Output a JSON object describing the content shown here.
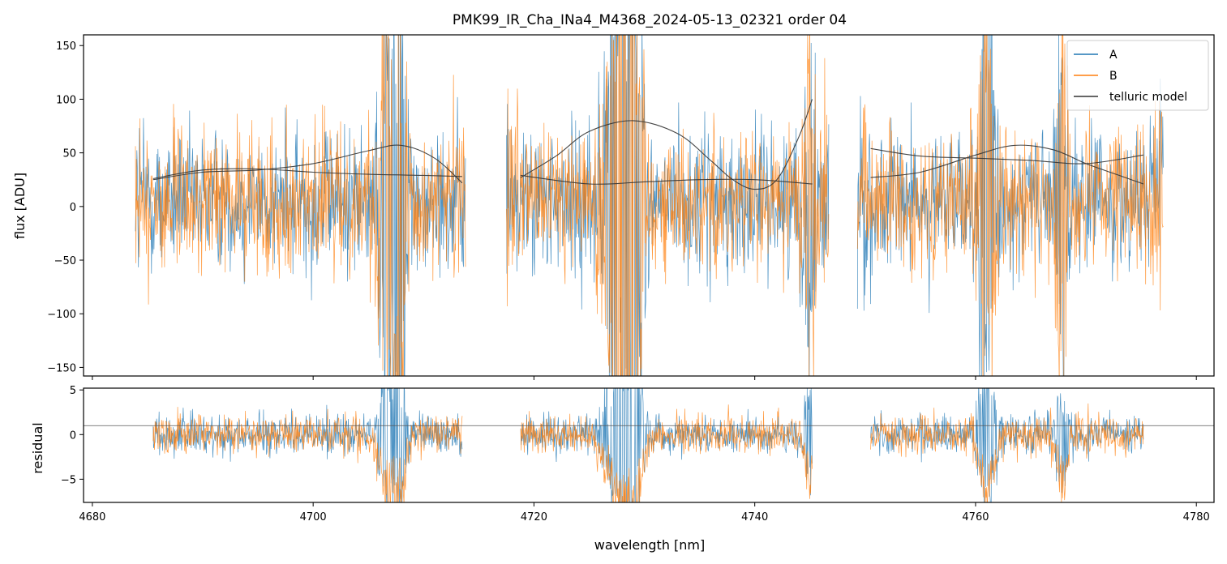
{
  "chart_data": {
    "type": "line",
    "title": "PMK99_IR_Cha_INa4_M4368_2024-05-13_02321  order 04",
    "xlabel": "wavelength [nm]",
    "xlim": [
      4679.2,
      4781.6
    ],
    "x_ticks": [
      4680,
      4700,
      4720,
      4740,
      4760,
      4780
    ],
    "x_tick_labels": [
      "4680",
      "4700",
      "4720",
      "4740",
      "4760",
      "4780"
    ],
    "segments": [
      {
        "start": 4683.9,
        "end": 4713.8
      },
      {
        "start": 4717.5,
        "end": 4746.7
      },
      {
        "start": 4749.3,
        "end": 4777.0
      }
    ],
    "panels": [
      {
        "name": "flux",
        "ylabel": "flux [ADU]",
        "ylim": [
          -158,
          160
        ],
        "y_ticks": [
          -150,
          -100,
          -50,
          0,
          50,
          100,
          150
        ],
        "y_tick_labels": [
          "−150",
          "−100",
          "−50",
          "0",
          "50",
          "100",
          "150"
        ],
        "series": [
          {
            "name": "A",
            "color": "#1f77b4",
            "noise_amplitude": 55,
            "offset": 5
          },
          {
            "name": "B",
            "color": "#ff7f0e",
            "noise_amplitude": 55,
            "offset": 5
          }
        ],
        "telluric_model": {
          "name": "telluric model",
          "color": "#333333",
          "curves": [
            {
              "x": [
                4685.5,
                4690,
                4695,
                4700,
                4705,
                4708,
                4711,
                4713.5
              ],
              "y": [
                25,
                32,
                34,
                40,
                52,
                57,
                45,
                22
              ]
            },
            {
              "x": [
                4685.5,
                4690,
                4695,
                4700,
                4705,
                4710,
                4713.5
              ],
              "y": [
                26,
                34,
                35,
                32,
                30,
                29,
                28
              ]
            },
            {
              "x": [
                4718.8,
                4722,
                4725,
                4729,
                4733,
                4736,
                4738,
                4740,
                4742,
                4744,
                4745.2
              ],
              "y": [
                27,
                47,
                70,
                80,
                68,
                43,
                25,
                16,
                25,
                65,
                100
              ]
            },
            {
              "x": [
                4718.8,
                4725,
                4730,
                4735,
                4740,
                4745.2
              ],
              "y": [
                29,
                21,
                23,
                25,
                25,
                21
              ]
            },
            {
              "x": [
                4750.5,
                4755,
                4760,
                4763.5,
                4767,
                4770,
                4773,
                4775.2
              ],
              "y": [
                27,
                32,
                48,
                57,
                53,
                40,
                29,
                21
              ]
            },
            {
              "x": [
                4750.5,
                4755,
                4760,
                4765,
                4770,
                4775.2
              ],
              "y": [
                54,
                47,
                45,
                43,
                40,
                48
              ]
            }
          ]
        },
        "features": [
          {
            "x": 4706.5,
            "width": 0.8,
            "depth": 120,
            "series": "both"
          },
          {
            "x": 4707.8,
            "width": 0.8,
            "depth": 140,
            "series": "both"
          },
          {
            "x": 4727.5,
            "width": 1.5,
            "depth": 130,
            "series": "both"
          },
          {
            "x": 4729.0,
            "width": 1.0,
            "depth": 150,
            "series": "both"
          },
          {
            "x": 4745.0,
            "width": 0.6,
            "depth": 120,
            "series": "both"
          },
          {
            "x": 4761.0,
            "width": 0.9,
            "depth": 140,
            "series": "both"
          },
          {
            "x": 4767.8,
            "width": 0.6,
            "depth": 120,
            "series": "both"
          }
        ],
        "legend": {
          "location": "top-right",
          "entries": [
            "A",
            "B",
            "telluric model"
          ]
        }
      },
      {
        "name": "residual",
        "ylabel": "residual",
        "ylim": [
          -7.6,
          5.2
        ],
        "y_ticks": [
          -5,
          0,
          5
        ],
        "y_tick_labels": [
          "−5",
          "0",
          "5"
        ],
        "reference_line": {
          "y": 1,
          "color": "#555555"
        },
        "segments": [
          {
            "start": 4685.5,
            "end": 4713.5
          },
          {
            "start": 4718.8,
            "end": 4745.2
          },
          {
            "start": 4750.5,
            "end": 4775.2
          }
        ],
        "series": [
          {
            "name": "A",
            "color": "#1f77b4",
            "noise_amplitude": 2.2
          },
          {
            "name": "B",
            "color": "#ff7f0e",
            "noise_amplitude": 2.2
          }
        ]
      }
    ]
  }
}
